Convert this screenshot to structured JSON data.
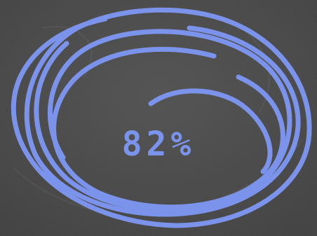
{
  "progress": {
    "value": 82,
    "label": "82%"
  },
  "colors": {
    "chalkboard": "#4a4a4a",
    "chalk_stroke": "#7b93ea",
    "label_color": "#7b93ea"
  }
}
